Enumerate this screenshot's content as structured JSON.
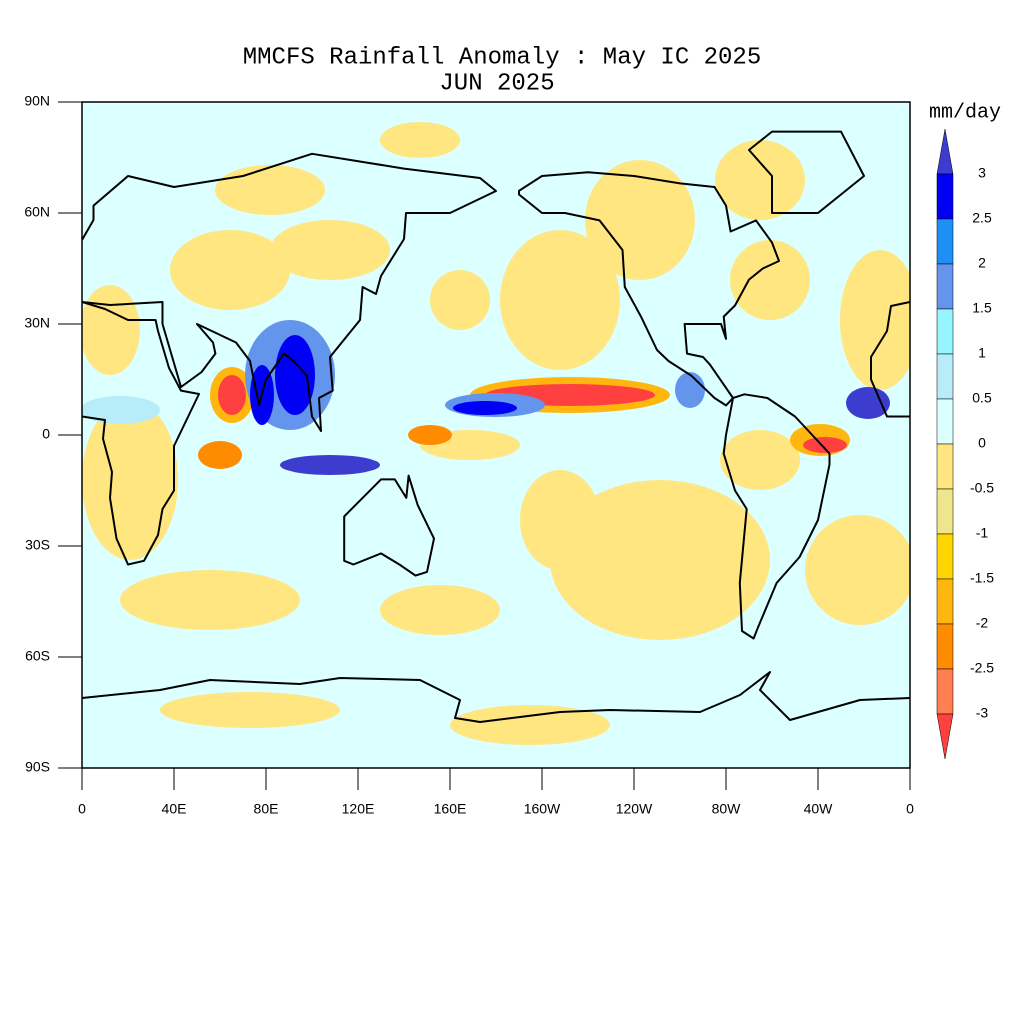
{
  "title": "MMCFS Rainfall Anomaly : May IC 2025",
  "subtitle": "JUN 2025",
  "map": {
    "xlim": [
      0,
      360
    ],
    "ylim": [
      -90,
      90
    ],
    "xticks": [
      0,
      {
        "value": 40,
        "label": "40E"
      },
      {
        "value": 80,
        "label": "80E"
      },
      {
        "value": 120,
        "label": "120E"
      },
      {
        "value": 160,
        "label": "160E"
      },
      {
        "value": 200,
        "label": "160W"
      },
      {
        "value": 240,
        "label": "120W"
      },
      {
        "value": 280,
        "label": "80W"
      },
      {
        "value": 320,
        "label": "40W"
      },
      {
        "value": 360,
        "label": "0"
      }
    ],
    "yticks": [
      {
        "value": 90,
        "label": "90N"
      },
      {
        "value": 60,
        "label": "60N"
      },
      {
        "value": 30,
        "label": "30N"
      },
      0,
      {
        "value": -30,
        "label": "30S"
      },
      {
        "value": -60,
        "label": "60S"
      },
      {
        "value": -90,
        "label": "90S"
      }
    ]
  },
  "colorbar": {
    "unit": "mm/day",
    "levels": [
      3,
      2.5,
      2,
      1.5,
      1,
      0.5,
      0,
      -0.5,
      -1,
      -1.5,
      -2,
      -2.5,
      -3
    ],
    "colors": [
      "#3c3ccf",
      "#0000f5",
      "#1e8ff5",
      "#6495ed",
      "#96f5ff",
      "#b8ecf8",
      "#dcffff",
      "#ffe680",
      "#eee68c",
      "#ffd700",
      "#ffb70f",
      "#ff8c00",
      "#ff7f50",
      "#ff4040"
    ]
  }
}
